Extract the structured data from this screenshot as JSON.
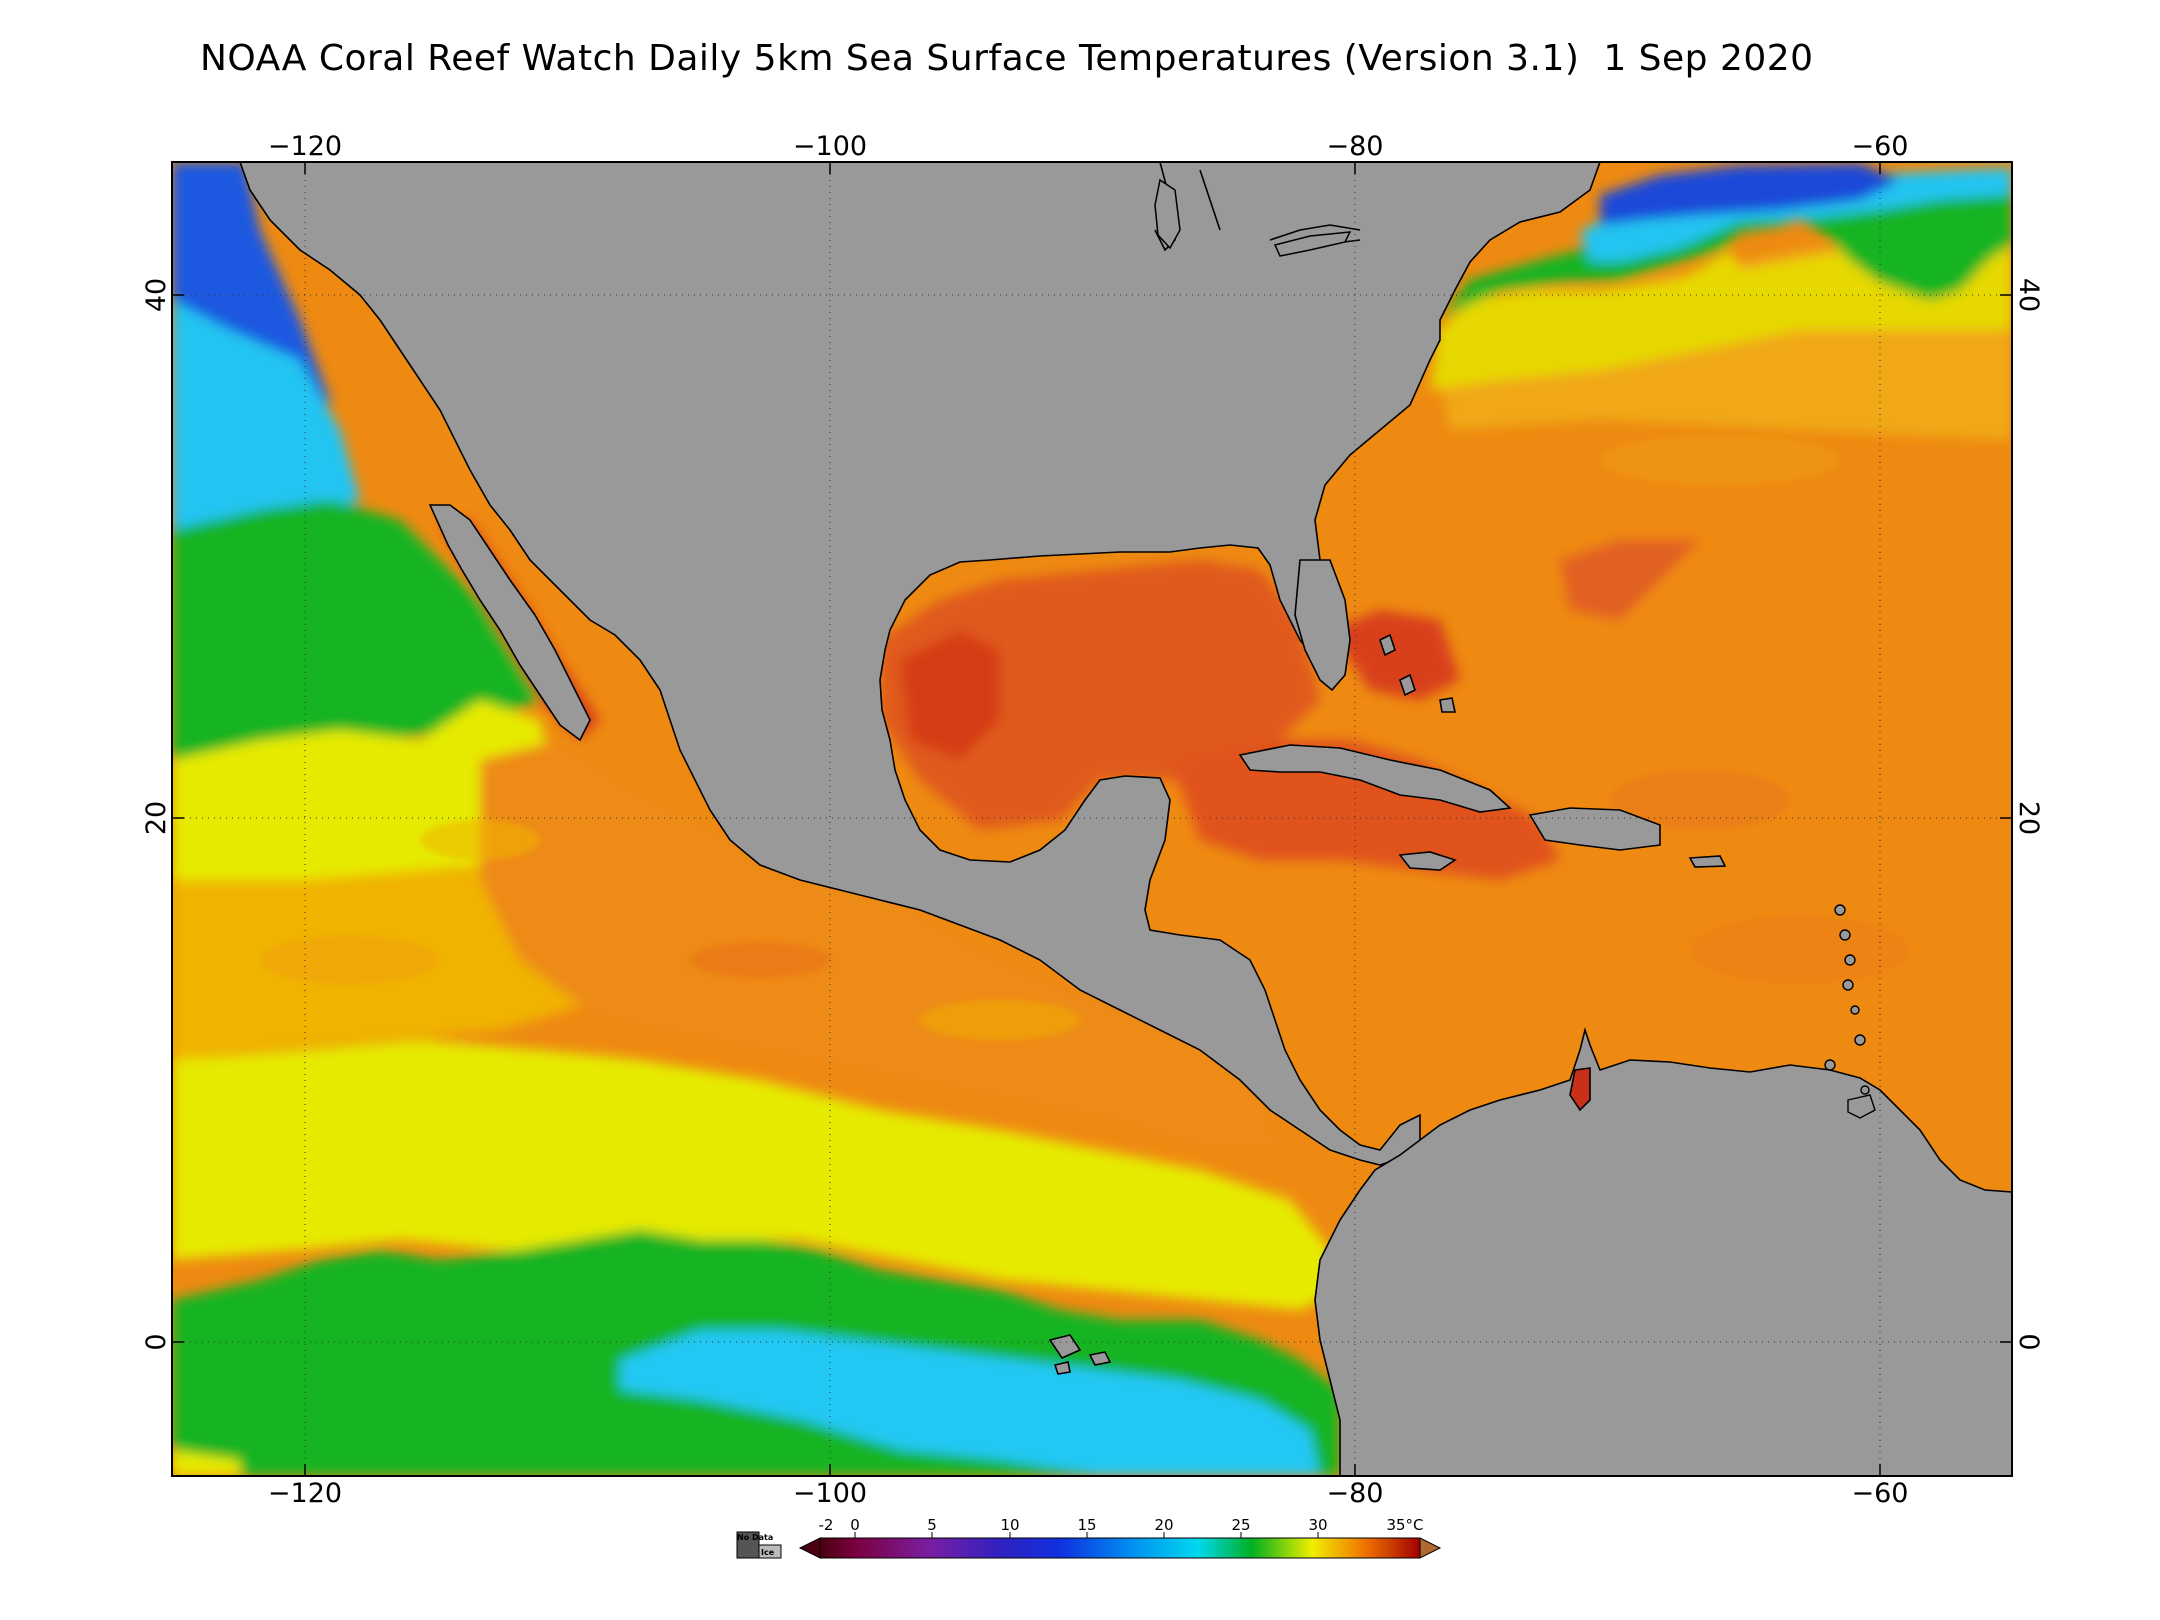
{
  "title": "NOAA Coral Reef Watch Daily 5km Sea Surface Temperatures (Version 3.1)  1 Sep 2020",
  "map": {
    "lon_ticks": [
      "−120",
      "−100",
      "−80",
      "−60"
    ],
    "lat_ticks": [
      "40",
      "20",
      "0"
    ],
    "land_color": "#999999",
    "no_data_label": "No Data",
    "ice_label": "Ice"
  },
  "colorbar": {
    "labels": [
      "-2",
      "0",
      "5",
      "10",
      "15",
      "20",
      "25",
      "30",
      "35°C"
    ],
    "colors": [
      "#5a0010",
      "#7a0060",
      "#5a1da8",
      "#1a1acd",
      "#0070f0",
      "#00ccee",
      "#00bb22",
      "#f0e800",
      "#f08000",
      "#c40000",
      "#9a4a10"
    ]
  },
  "sst_palette": {
    "cold_blue": "#1b40d8",
    "cyan": "#22c8f4",
    "green": "#16b41e",
    "yellow": "#e6ea00",
    "light_orange": "#f0b400",
    "orange": "#ee8a12",
    "red_orange": "#e2561c",
    "red": "#c8301a"
  }
}
